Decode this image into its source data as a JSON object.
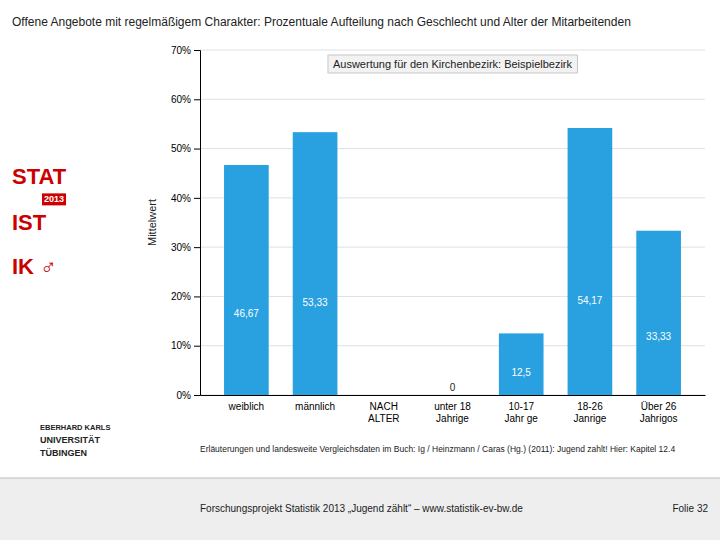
{
  "chart_data": {
    "type": "bar",
    "title": "Offene Angebote mit regelmäßigem Charakter: Prozentuale Aufteilung nach Geschlecht und Alter der Mitarbeitenden",
    "subtitle": "Auswertung für den Kirchenbezirk: Beispielbezirk",
    "ylabel": "Mittelwert",
    "categories": [
      "weiblich",
      "männlich",
      "NACH\nALTER",
      "unter 18\nJahrige",
      "10-17\nJahr ge",
      "18-26\nJanrige",
      "Über 26\nJahrigos"
    ],
    "values": [
      46.67,
      53.33,
      0.0,
      0.0,
      12.5,
      54.17,
      33.33
    ],
    "value_labels": [
      "46,67",
      "53,33",
      null,
      "0",
      "12,5",
      "54,17",
      "33,33"
    ],
    "data_labels": true,
    "color": "#29A0E0",
    "ylim": [
      0,
      70
    ],
    "yticks": [
      {
        "value": 0,
        "label": "0%"
      },
      {
        "value": 10,
        "label": "10%"
      },
      {
        "value": 20,
        "label": "20%"
      },
      {
        "value": 30,
        "label": "30%"
      },
      {
        "value": 40,
        "label": "40%"
      },
      {
        "value": 50,
        "label": "50%"
      },
      {
        "value": 60,
        "label": "60%"
      },
      {
        "value": 70,
        "label": "70%"
      }
    ],
    "grid": true,
    "erlaeuterung": "Erläuterungen und landesweite Vergleichsdaten im Buch: Ig / Heinzmann / Caras (Hg.) (2011): Jugend zahlt! Hier: Kapitel 12.4",
    "footer_text": "Forschungsprojekt Statistik 2013 „Jugend zählt“ –  www.statistik-ev-bw.de",
    "footer_right": "Folie 32",
    "logo_texts": [
      "STAT",
      "IST",
      "IK ♂"
    ],
    "logo_badge": "2013",
    "university_texts": [
      "EBERHARD KARLS",
      "UNIVERSITÄT",
      "TÜBINGEN"
    ]
  }
}
